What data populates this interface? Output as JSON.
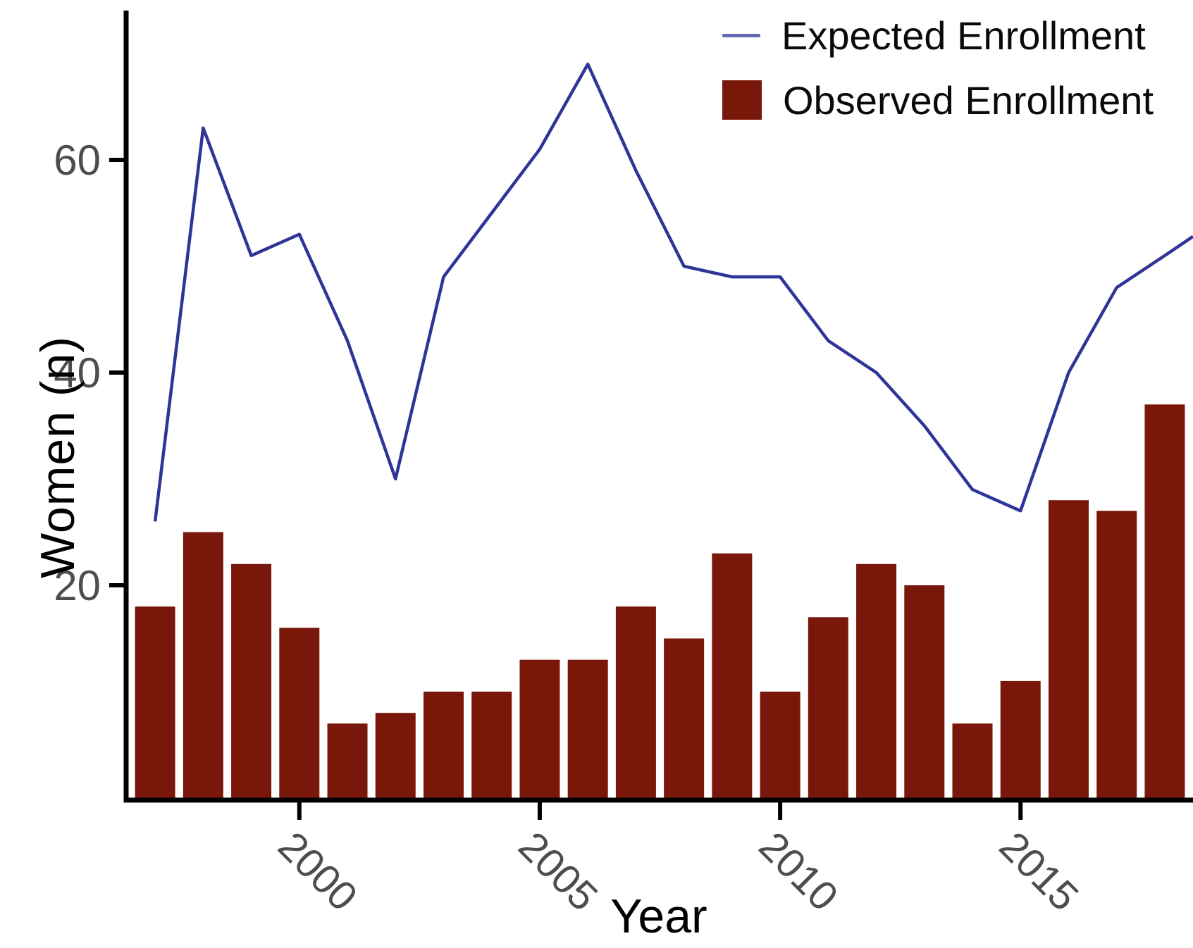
{
  "chart_data": {
    "type": "bar",
    "title": "",
    "xlabel": "Year",
    "ylabel": "Women (n)",
    "x": [
      1997,
      1998,
      1999,
      2000,
      2001,
      2002,
      2003,
      2004,
      2005,
      2006,
      2007,
      2008,
      2009,
      2010,
      2011,
      2012,
      2013,
      2014,
      2015,
      2016,
      2017,
      2018
    ],
    "series": [
      {
        "name": "Expected Enrollment",
        "type": "line",
        "color": "#2E3597",
        "values": [
          26,
          63,
          51,
          53,
          43,
          30,
          49,
          55,
          61,
          69,
          59,
          50,
          49,
          49,
          43,
          40,
          35,
          29,
          27,
          40,
          48,
          51
        ],
        "right_edge_clipped_value": 52.8
      },
      {
        "name": "Observed Enrollment",
        "type": "bar",
        "color": "#7A170B",
        "values": [
          18,
          25,
          22,
          16,
          7,
          8,
          10,
          10,
          13,
          13,
          18,
          15,
          23,
          10,
          17,
          22,
          20,
          7,
          11,
          28,
          27,
          37
        ]
      }
    ],
    "yticks": [
      20,
      40,
      60
    ],
    "xticks": [
      2000,
      2005,
      2010,
      2015
    ],
    "ylim": [
      0,
      75
    ],
    "xlim": [
      1996.4,
      2018.6
    ],
    "grid": "off",
    "legend_position": "top-right-inside",
    "x_tick_label_angle_deg": 45,
    "axis_color": "#000000",
    "tick_label_color": "#4d4d4d"
  },
  "legend": {
    "expected_label": "Expected Enrollment",
    "observed_label": "Observed Enrollment"
  },
  "axes": {
    "y_title": "Women (n)",
    "x_title": "Year"
  }
}
